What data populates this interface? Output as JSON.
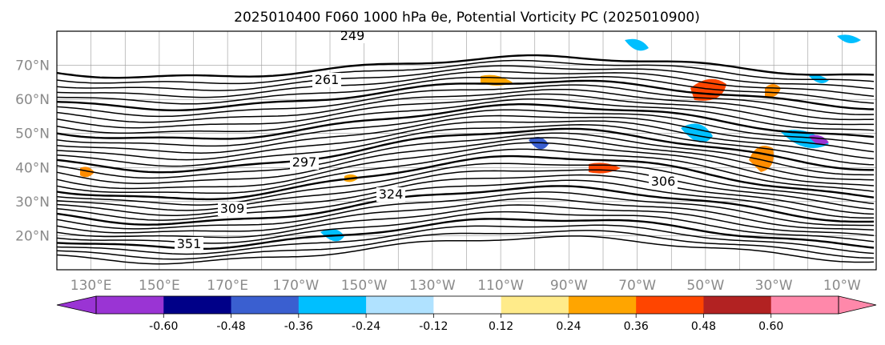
{
  "title": "2025010400 F060 1000 hPa θe, Potential Vorticity PC (2025010900)",
  "map": {
    "projection": "PlateCarree",
    "lon_range": [
      120,
      360
    ],
    "lat_range": [
      10,
      80
    ],
    "lat_labels": [
      "20°N",
      "30°N",
      "40°N",
      "50°N",
      "60°N",
      "70°N"
    ],
    "lon_labels": [
      "130°E",
      "150°E",
      "170°E",
      "170°W",
      "150°W",
      "130°W",
      "110°W",
      "90°W",
      "70°W",
      "50°W",
      "30°W",
      "10°W"
    ],
    "contour_labels": [
      "249",
      "297",
      "309",
      "324",
      "306",
      "351",
      "261"
    ],
    "contour_color": "#000000",
    "gridline_color": "#999999"
  },
  "colorbar": {
    "ticks": [
      "-0.60",
      "-0.48",
      "-0.36",
      "-0.24",
      "-0.12",
      "0.12",
      "0.24",
      "0.36",
      "0.48",
      "0.60"
    ],
    "colors": [
      "#9a34d4",
      "#000088",
      "#3a5fd0",
      "#00bfff",
      "#b0e2ff",
      "#ffffff",
      "#ffeb8a",
      "#ffa500",
      "#ff4500",
      "#b22222",
      "#ff88aa",
      "#ff88aa"
    ],
    "extend": "both"
  }
}
